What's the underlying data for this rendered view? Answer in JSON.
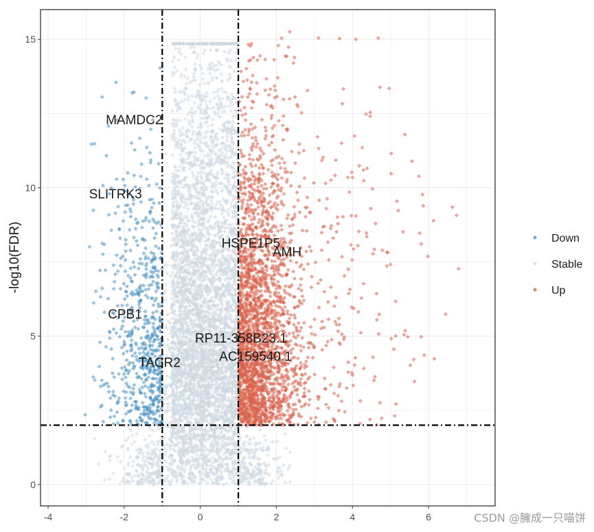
{
  "chart_data": {
    "type": "scatter",
    "title": "",
    "xlabel": "",
    "ylabel": "-log10(FDR)",
    "xlim": [
      -4.2,
      7.75
    ],
    "ylim": [
      -0.72,
      16.0
    ],
    "x_ticks": [
      -4,
      -2,
      0,
      2,
      4,
      6
    ],
    "y_ticks": [
      0,
      5,
      10,
      15
    ],
    "grid": true,
    "thresholds": {
      "logFC": [
        -1,
        1
      ],
      "neg_log10_fdr": 2
    },
    "legend": {
      "placement": "right",
      "entries": [
        {
          "name": "Down",
          "color": "#4b93c3"
        },
        {
          "name": "Stable",
          "color": "#cfd8e1"
        },
        {
          "name": "Up",
          "color": "#d9634c"
        }
      ]
    },
    "series_generation": {
      "Stable": {
        "count": 5200,
        "x_range": [
          -3.2,
          2.4
        ],
        "y_cap": 14.85
      },
      "Down": {
        "count": 650,
        "x_range": [
          -3.5,
          -1
        ],
        "y_range": [
          2,
          14.3
        ]
      },
      "Up": {
        "count": 2600,
        "x_range": [
          1,
          7.2
        ],
        "y_range": [
          2,
          15.3
        ]
      }
    },
    "annotations": [
      {
        "label": "MAMDC2",
        "x": -1.74,
        "y": 12.3
      },
      {
        "label": "SLITRK3",
        "x": -2.23,
        "y": 9.8
      },
      {
        "label": "HSPE1P5",
        "x": 1.33,
        "y": 8.15
      },
      {
        "label": "AMH",
        "x": 2.28,
        "y": 7.85
      },
      {
        "label": "CPB1",
        "x": -1.98,
        "y": 5.76
      },
      {
        "label": "RP11-358B23.1",
        "x": 1.07,
        "y": 4.95
      },
      {
        "label": "AC159540.1",
        "x": 1.45,
        "y": 4.33
      },
      {
        "label": "TACR2",
        "x": -1.07,
        "y": 4.12
      }
    ]
  },
  "watermark": "CSDN @臃成一只喵饼"
}
